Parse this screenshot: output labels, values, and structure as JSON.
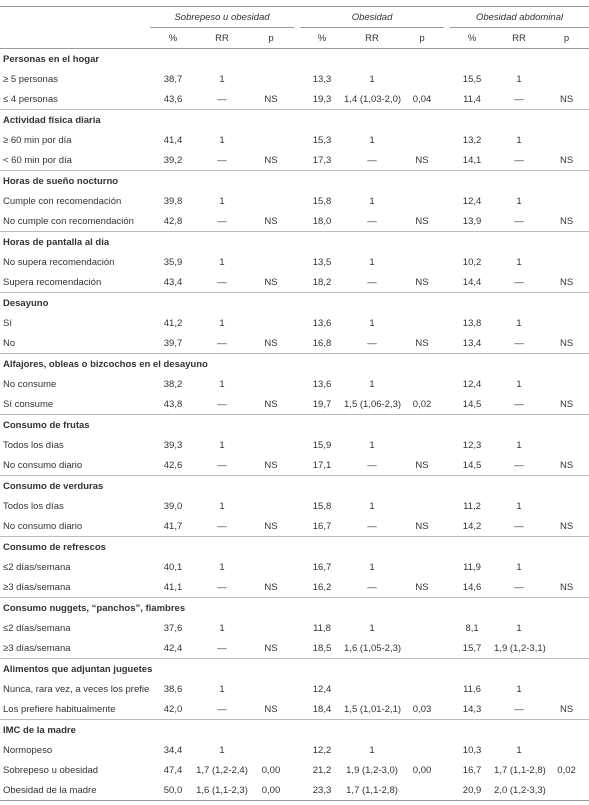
{
  "table": {
    "groups": [
      "Sobrepeso u obesidad",
      "Obesidad",
      "Obesidad abdominal"
    ],
    "subheaders": [
      "%",
      "RR",
      "p",
      "%",
      "RR",
      "p",
      "%",
      "RR",
      "p"
    ],
    "sections": [
      {
        "title": "Personas en el hogar",
        "rows": [
          [
            "≥ 5 personas",
            "38,7",
            "1",
            null,
            "13,3",
            "1",
            null,
            "15,5",
            "1",
            null
          ],
          [
            "≤ 4 personas",
            "43,6",
            "—",
            "NS",
            "19,3",
            "1,4 (1,03-2,0)",
            "0,04",
            "11,4",
            "—",
            "NS"
          ]
        ]
      },
      {
        "title": "Actividad física diaria",
        "rows": [
          [
            "≥ 60 min por día",
            "41,4",
            "1",
            null,
            "15,3",
            "1",
            null,
            "13,2",
            "1",
            null
          ],
          [
            "< 60 min por día",
            "39,2",
            "—",
            "NS",
            "17,3",
            "—",
            "NS",
            "14,1",
            "—",
            "NS"
          ]
        ]
      },
      {
        "title": "Horas de sueño nocturno",
        "rows": [
          [
            "Cumple con recomendación",
            "39,8",
            "1",
            null,
            "15,8",
            "1",
            null,
            "12,4",
            "1",
            null
          ],
          [
            "No cumple con recomendación",
            "42,8",
            "—",
            "NS",
            "18,0",
            "—",
            "NS",
            "13,9",
            "—",
            "NS"
          ]
        ]
      },
      {
        "title": "Horas de pantalla al día",
        "rows": [
          [
            "No supera recomendación",
            "35,9",
            "1",
            null,
            "13,5",
            "1",
            null,
            "10,2",
            "1",
            null
          ],
          [
            "Supera recomendación",
            "43,4",
            "—",
            "NS",
            "18,2",
            "—",
            "NS",
            "14,4",
            "—",
            "NS"
          ]
        ]
      },
      {
        "title": "Desayuno",
        "rows": [
          [
            "Sí",
            "41,2",
            "1",
            null,
            "13,6",
            "1",
            null,
            "13,8",
            "1",
            null
          ],
          [
            "No",
            "39,7",
            "—",
            "NS",
            "16,8",
            "—",
            "NS",
            "13,4",
            "—",
            "NS"
          ]
        ]
      },
      {
        "title": "Alfajores, obleas o bizcochos en el desayuno",
        "rows": [
          [
            "No consume",
            "38,2",
            "1",
            null,
            "13,6",
            "1",
            null,
            "12,4",
            "1",
            null
          ],
          [
            "Sí consume",
            "43,8",
            "—",
            "NS",
            "19,7",
            "1,5 (1,06-2,3)",
            "0,02",
            "14,5",
            "—",
            "NS"
          ]
        ]
      },
      {
        "title": "Consumo de frutas",
        "rows": [
          [
            "Todos los días",
            "39,3",
            "1",
            null,
            "15,9",
            "1",
            null,
            "12,3",
            "1",
            null
          ],
          [
            "No consumo diario",
            "42,6",
            "—",
            "NS",
            "17,1",
            "—",
            "NS",
            "14,5",
            "—",
            "NS"
          ]
        ]
      },
      {
        "title": "Consumo de verduras",
        "rows": [
          [
            "Todos los días",
            "39,0",
            "1",
            null,
            "15,8",
            "1",
            null,
            "11,2",
            "1",
            null
          ],
          [
            "No consumo diario",
            "41,7",
            "—",
            "NS",
            "16,7",
            "—",
            "NS",
            "14,2",
            "—",
            "NS"
          ]
        ]
      },
      {
        "title": "Consumo de refrescos",
        "rows": [
          [
            "≤2 días/semana",
            "40,1",
            "1",
            null,
            "16,7",
            "1",
            null,
            "11,9",
            "1",
            null
          ],
          [
            "≥3 días/semana",
            "41,1",
            "—",
            "NS",
            "16,2",
            "—",
            "NS",
            "14,6",
            "—",
            "NS"
          ]
        ]
      },
      {
        "title": "Consumo nuggets, “panchos”, fiambres",
        "rows": [
          [
            "≤2 días/semana",
            "37,6",
            "1",
            null,
            "11,8",
            "1",
            null,
            "8,1",
            "1",
            null
          ],
          [
            "≥3 días/semana",
            "42,4",
            "—",
            "NS",
            "18,5",
            "1,6 (1,05-2,3)",
            null,
            "15,7",
            "1,9  (1,2-3,1)",
            null
          ]
        ]
      },
      {
        "title": "Alimentos que adjuntan juguetes",
        "rows": [
          [
            "Nunca, rara vez, a veces los prefiere",
            "38,6",
            "1",
            null,
            "12,4",
            null,
            null,
            "11,6",
            "1",
            null
          ],
          [
            "Los prefiere habitualmente",
            "42,0",
            "—",
            "NS",
            "18,4",
            "1,5  (1,01-2,1)",
            "0,03",
            "14,3",
            "—",
            "NS"
          ]
        ]
      },
      {
        "title": "IMC de la madre",
        "rows": [
          [
            "Normopeso",
            "34,4",
            "1",
            null,
            "12,2",
            "1",
            null,
            "10,3",
            "1",
            null
          ],
          [
            "Sobrepeso u obesidad",
            "47,4",
            "1,7  (1,2-2,4)",
            "0,00",
            "21,2",
            "1,9  (1,2-3,0)",
            "0,00",
            "16,7",
            "1,7  (1,1-2,8)",
            "0,02"
          ],
          [
            "Obesidad de la madre",
            "50,0",
            "1,6  (1,1-2,3)",
            "0,00",
            "23,3",
            "1,7  (1,1-2,8)",
            null,
            "20,9",
            "2,0  (1,2-3,3)",
            null
          ]
        ]
      }
    ]
  }
}
